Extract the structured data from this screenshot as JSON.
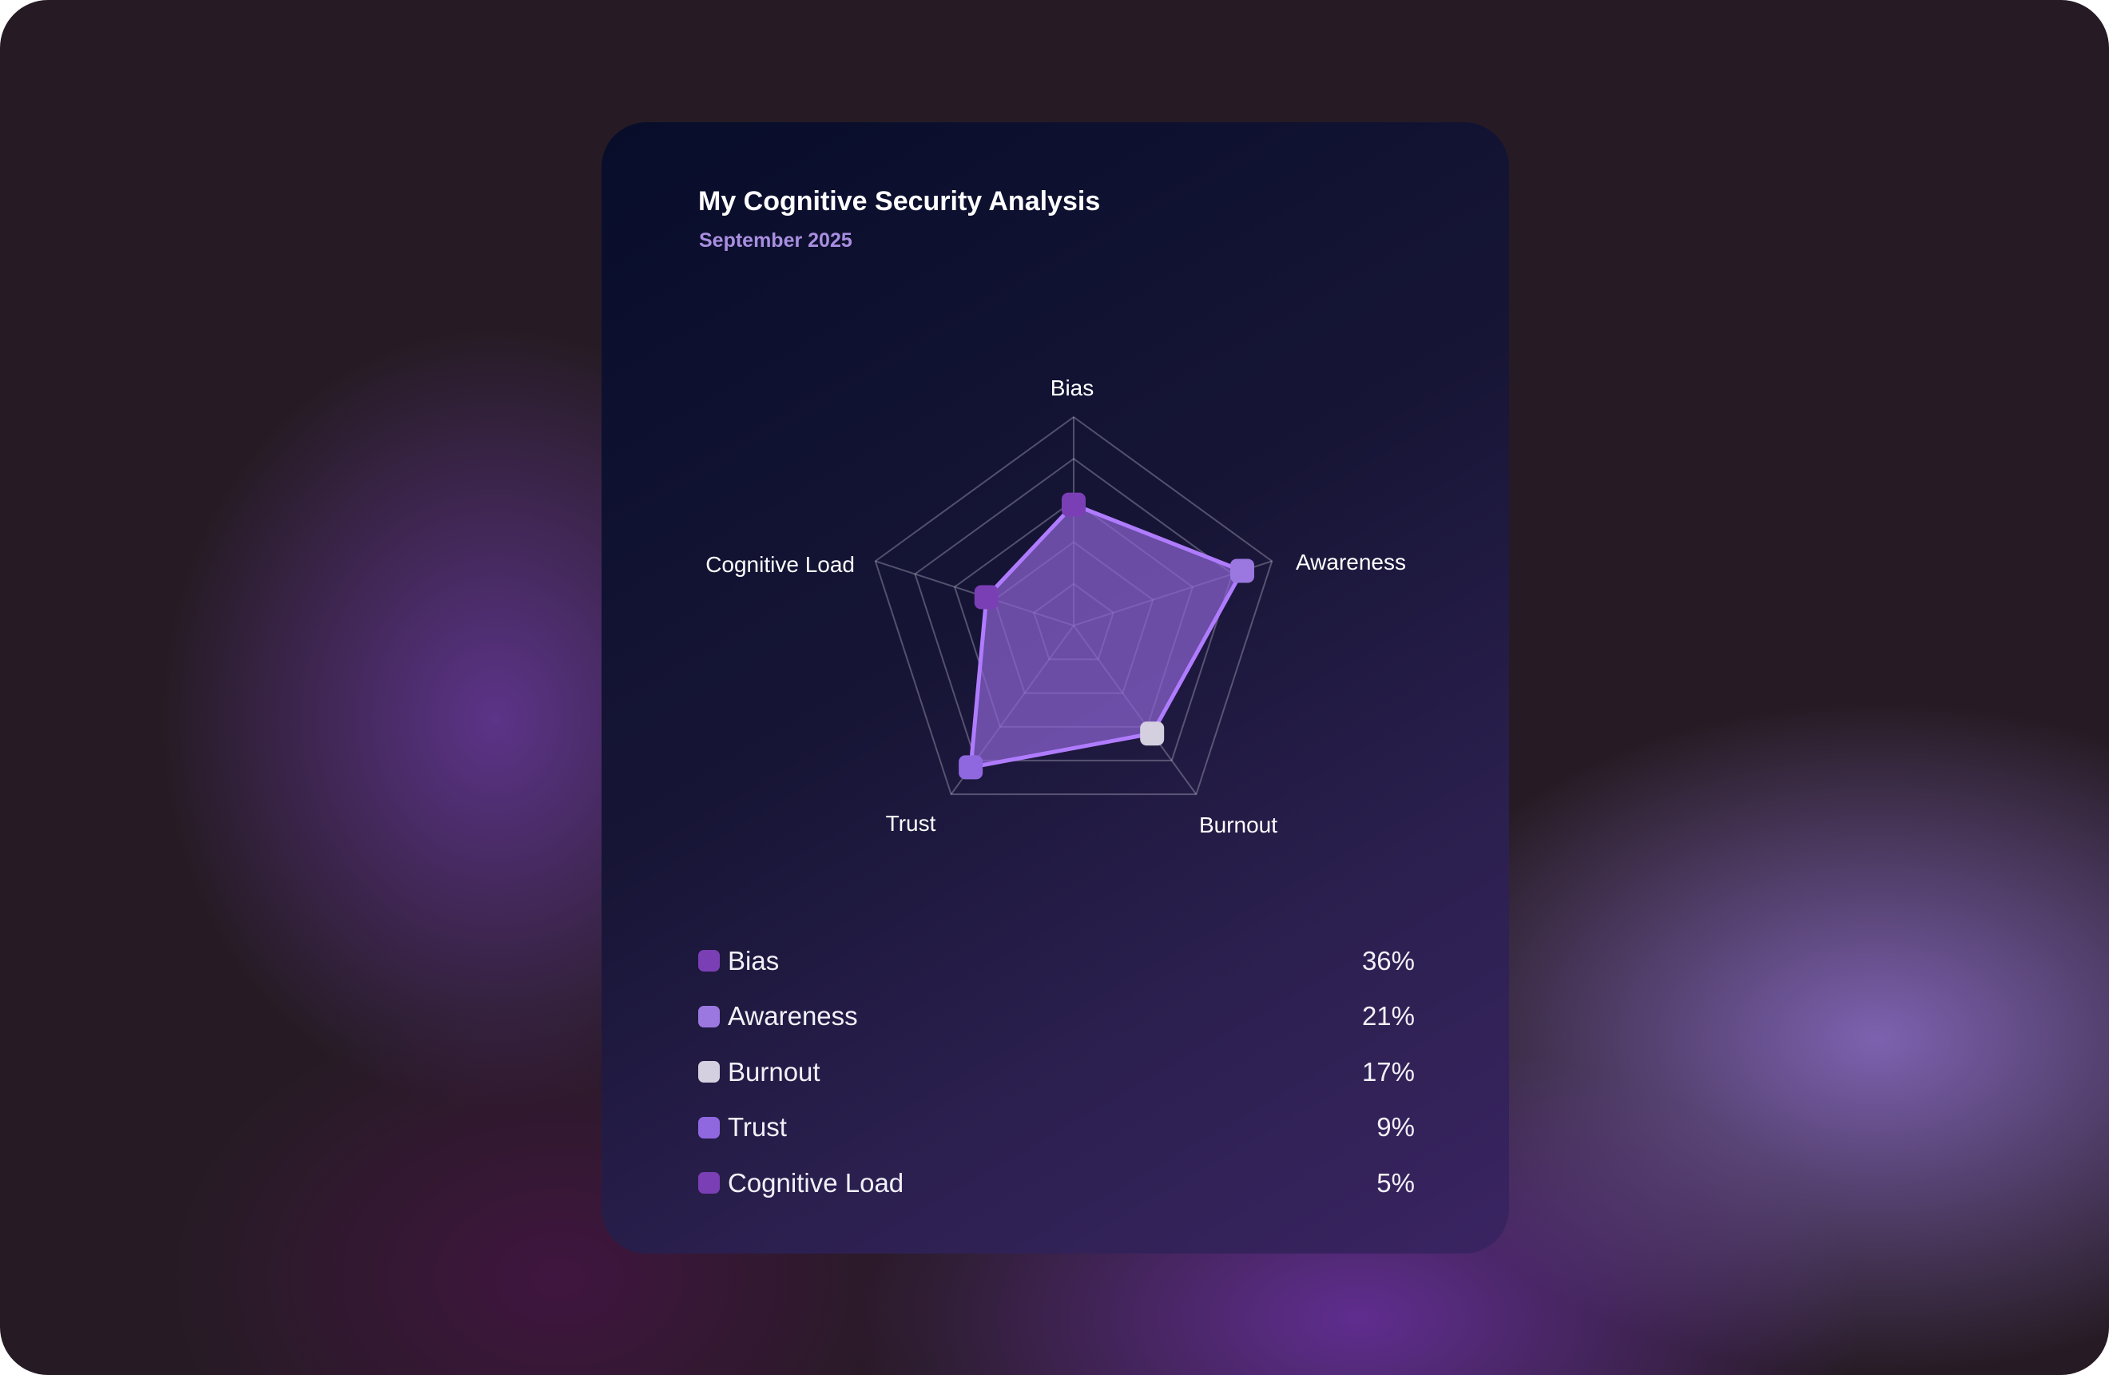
{
  "card": {
    "title": "My Cognitive Security Analysis",
    "subtitle": "September 2025"
  },
  "chart_data": {
    "type": "radar",
    "axes": [
      "Bias",
      "Awareness",
      "Burnout",
      "Trust",
      "Cognitive Load"
    ],
    "values": [
      58,
      85,
      64,
      84,
      44
    ],
    "range": [
      0,
      100
    ],
    "grid_levels": 5,
    "marker_colors": [
      "#7b3fb5",
      "#9b78e0",
      "#d4d0e0",
      "#8f68e0",
      "#7b3fb5"
    ],
    "fill_color": "#8a62d0",
    "line_color": "#b07cff"
  },
  "legend": [
    {
      "label": "Bias",
      "value": "36%",
      "color": "#7b3fb5"
    },
    {
      "label": "Awareness",
      "value": "21%",
      "color": "#9b78e0"
    },
    {
      "label": "Burnout",
      "value": "17%",
      "color": "#d4d0e0"
    },
    {
      "label": "Trust",
      "value": "9%",
      "color": "#8f68e0"
    },
    {
      "label": "Cognitive Load",
      "value": "5%",
      "color": "#7b3fb5"
    }
  ]
}
